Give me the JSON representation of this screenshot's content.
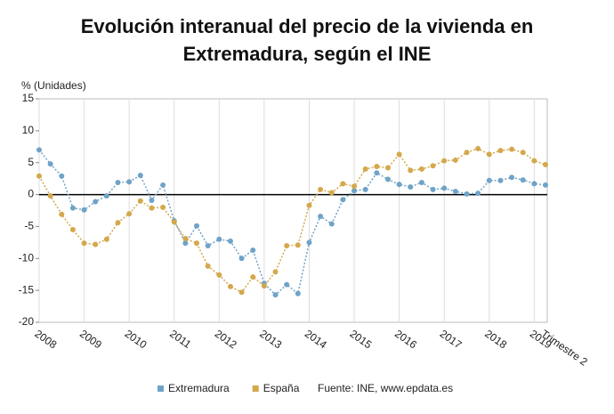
{
  "chart_data": {
    "type": "line",
    "title": "Evolución interanual del precio de la vivienda en Extremadura, según el INE",
    "y_label": "% (Unidades)",
    "source": "Fuente: INE, www.epdata.es",
    "categories": [
      "2008",
      null,
      null,
      null,
      "2009",
      null,
      null,
      null,
      "2010",
      null,
      null,
      null,
      "2011",
      null,
      null,
      null,
      "2012",
      null,
      null,
      null,
      "2013",
      null,
      null,
      null,
      "2014",
      null,
      null,
      null,
      "2015",
      null,
      null,
      null,
      "2016",
      null,
      null,
      null,
      "2017",
      null,
      null,
      null,
      "2018",
      null,
      null,
      null,
      "2019",
      "Trimestre 2"
    ],
    "series": [
      {
        "name": "Extremadura",
        "color": "#6fa3c7",
        "values": [
          7,
          4.8,
          2.9,
          -2.1,
          -2.4,
          -1.1,
          -0.2,
          1.9,
          2.0,
          3.0,
          -0.9,
          1.5,
          -4.1,
          -7.6,
          -4.9,
          -8.0,
          -7.0,
          -7.3,
          -10.0,
          -8.7,
          -13.9,
          -15.7,
          -14.1,
          -15.5,
          -7.5,
          -3.4,
          -4.6,
          -0.8,
          0.6,
          0.8,
          3.4,
          2.4,
          1.6,
          1.2,
          1.9,
          0.8,
          1.0,
          0.5,
          0.1,
          0.2,
          2.2,
          2.2,
          2.7,
          2.3,
          1.7,
          1.5
        ]
      },
      {
        "name": "España",
        "color": "#d4a84b",
        "values": [
          2.9,
          -0.2,
          -3.1,
          -5.5,
          -7.6,
          -7.8,
          -7.0,
          -4.4,
          -3.0,
          -1.0,
          -2.1,
          -2.0,
          -4.3,
          -6.9,
          -7.6,
          -11.2,
          -12.6,
          -14.4,
          -15.3,
          -12.9,
          -14.3,
          -12.1,
          -8.0,
          -7.9,
          -1.7,
          0.8,
          0.3,
          1.7,
          1.3,
          4.0,
          4.4,
          4.2,
          6.3,
          3.8,
          4.0,
          4.5,
          5.3,
          5.4,
          6.6,
          7.2,
          6.3,
          6.9,
          7.1,
          6.6,
          5.3,
          4.7
        ]
      }
    ],
    "ylim": [
      -20,
      15
    ],
    "yticks": [
      -20,
      -15,
      -10,
      -5,
      0,
      5,
      10,
      15
    ],
    "grid": true
  }
}
